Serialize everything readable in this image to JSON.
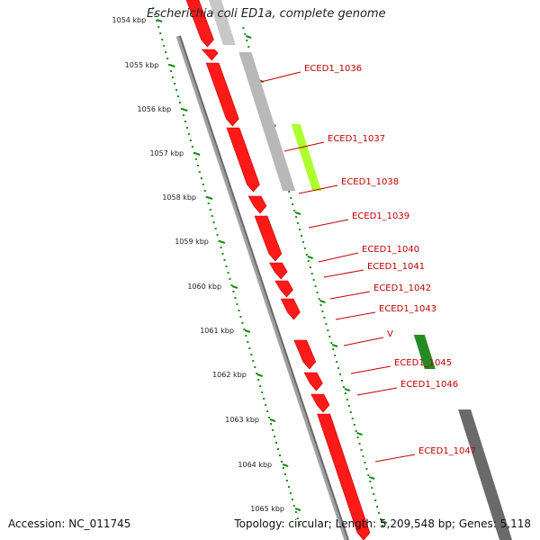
{
  "title": "Escherichia coli ED1a, complete genome",
  "footer": {
    "accession": "Accession: NC_011745",
    "summary": "Topology: circular; Length: 5,209,548 bp; Genes: 5,118"
  },
  "ruler": {
    "unit": "kbp",
    "ticks": [
      "1054 kbp",
      "1055 kbp",
      "1056 kbp",
      "1057 kbp",
      "1058 kbp",
      "1059 kbp",
      "1060 kbp",
      "1061 kbp",
      "1062 kbp",
      "1063 kbp",
      "1064 kbp",
      "1065 kbp"
    ]
  },
  "genes": [
    {
      "name": "ECED1_1036"
    },
    {
      "name": "ECED1_1037"
    },
    {
      "name": "ECED1_1038"
    },
    {
      "name": "ECED1_1039"
    },
    {
      "name": "ECED1_1040"
    },
    {
      "name": "ECED1_1041"
    },
    {
      "name": "ECED1_1042"
    },
    {
      "name": "ECED1_1043"
    },
    {
      "name": "V"
    },
    {
      "name": "ECED1_1045"
    },
    {
      "name": "ECED1_1046"
    },
    {
      "name": "ECED1_1047"
    }
  ],
  "colors": {
    "forward_gene": "#ff1a1a",
    "reverse_gene_light": "#b8b8b8",
    "reverse_gene_dark": "#6a6a6a",
    "highlight_lime": "#adff2f",
    "highlight_green": "#228b22",
    "ruler": "#1a8a1a",
    "backbone": "#8c8c8c",
    "label": "#c00000"
  }
}
